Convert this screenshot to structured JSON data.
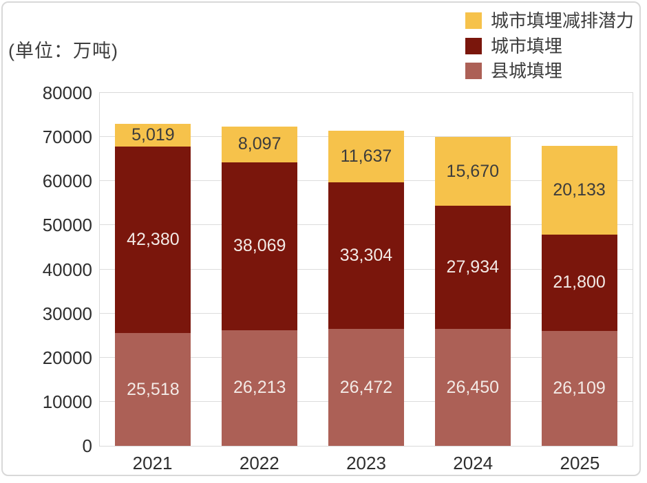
{
  "unit_label": "(单位：万吨)",
  "chart_data": {
    "type": "bar",
    "stacked": true,
    "title": "",
    "xlabel": "",
    "ylabel": "(单位：万吨)",
    "categories": [
      "2021",
      "2022",
      "2023",
      "2024",
      "2025"
    ],
    "series": [
      {
        "name": "县城填埋",
        "color": "#AC6056",
        "label_color": "#F3EAE6",
        "values": [
          25518,
          26213,
          26472,
          26450,
          26109
        ],
        "labels": [
          "25,518",
          "26,213",
          "26,472",
          "26,450",
          "26,109"
        ]
      },
      {
        "name": "城市填埋",
        "color": "#7A160C",
        "label_color": "#F3EAE6",
        "values": [
          42380,
          38069,
          33304,
          27934,
          21800
        ],
        "labels": [
          "42,380",
          "38,069",
          "33,304",
          "27,934",
          "21,800"
        ]
      },
      {
        "name": "城市填埋减排潜力",
        "color": "#F6C24B",
        "label_color": "#3C3C3C",
        "values": [
          5019,
          8097,
          11637,
          15670,
          20133
        ],
        "labels": [
          "5,019",
          "8,097",
          "11,637",
          "15,670",
          "20,133"
        ]
      }
    ],
    "legend_order": [
      "城市填埋减排潜力",
      "城市填埋",
      "县城填埋"
    ],
    "legend_position": "top-right",
    "ylim": [
      0,
      80000
    ],
    "ytick_step": 10000,
    "yticks": [
      "0",
      "10000",
      "20000",
      "30000",
      "40000",
      "50000",
      "60000",
      "70000",
      "80000"
    ],
    "grid": true
  }
}
